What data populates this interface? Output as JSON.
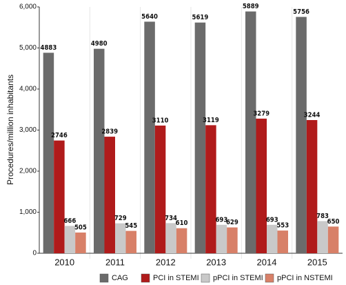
{
  "chart_data": {
    "type": "bar",
    "y_label": "Procedures/million inhabitants",
    "categories": [
      "2010",
      "2011",
      "2012",
      "2013",
      "2014",
      "2015"
    ],
    "series": [
      {
        "name": "CAG",
        "color": "#6b6b6b",
        "values": [
          4883,
          4980,
          5640,
          5619,
          5889,
          5756
        ]
      },
      {
        "name": "PCI in STEMI",
        "color": "#b01b1b",
        "values": [
          2746,
          2839,
          3110,
          3119,
          3279,
          3244
        ]
      },
      {
        "name": "pPCI in STEMI",
        "color": "#c9c9c9",
        "values": [
          666,
          729,
          734,
          693,
          693,
          783
        ]
      },
      {
        "name": "pPCI in NSTEMI",
        "color": "#d88068",
        "values": [
          505,
          545,
          610,
          629,
          553,
          650
        ]
      }
    ],
    "ylim": [
      0,
      6000
    ],
    "yticks": [
      0,
      {
        "value": 1000,
        "label": "1,000"
      },
      {
        "value": 2000,
        "label": "2,000"
      },
      {
        "value": 3000,
        "label": "3,000"
      },
      {
        "value": 4000,
        "label": "4,000"
      },
      {
        "value": 5000,
        "label": "5,000"
      },
      {
        "value": 6000,
        "label": "6,000"
      }
    ],
    "legend": "bottom"
  }
}
